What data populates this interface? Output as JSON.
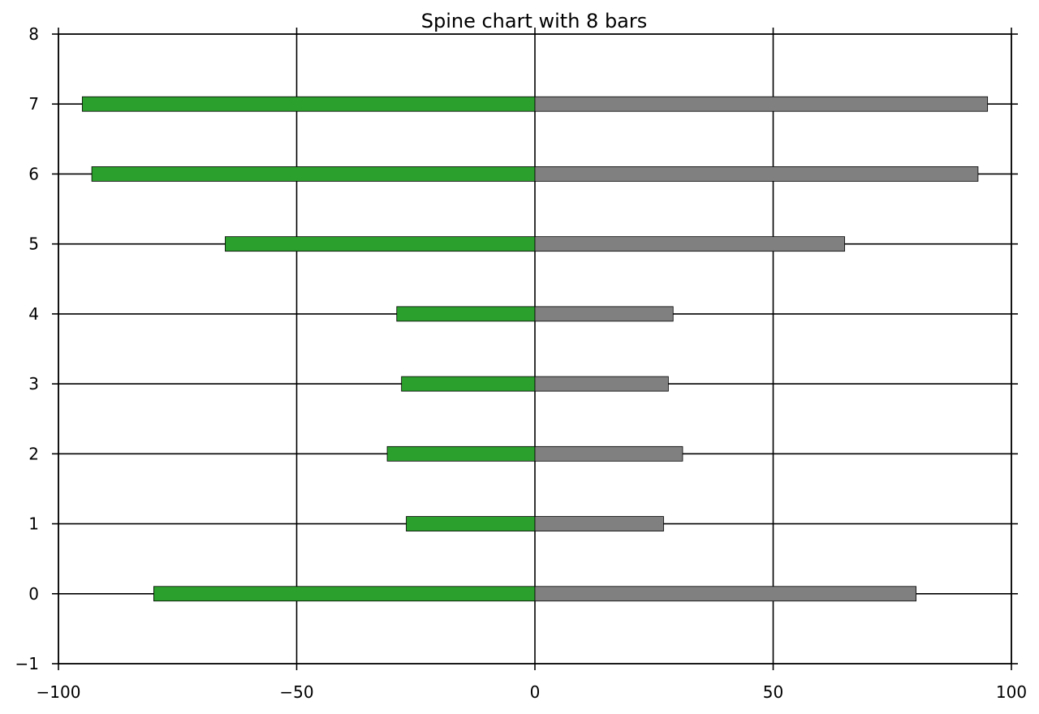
{
  "chart_data": {
    "type": "bar",
    "orientation": "horizontal",
    "stacking": "diverging",
    "title": "Spine chart with 8 bars",
    "xlabel": "",
    "ylabel": "",
    "xlim": [
      -100,
      100
    ],
    "ylim": [
      -1,
      8
    ],
    "x_ticks": [
      -100,
      -50,
      0,
      50,
      100
    ],
    "y_ticks": [
      -1,
      0,
      1,
      2,
      3,
      4,
      5,
      6,
      7,
      8
    ],
    "x_tick_labels": [
      "−100",
      "−50",
      "0",
      "50",
      "100"
    ],
    "y_tick_labels": [
      "−1",
      "0",
      "1",
      "2",
      "3",
      "4",
      "5",
      "6",
      "7",
      "8"
    ],
    "grid": true,
    "legend": "none",
    "categories": [
      0,
      1,
      2,
      3,
      4,
      5,
      6,
      7
    ],
    "series": [
      {
        "side": "left",
        "color": "#2ca02c",
        "values": [
          -80,
          -27,
          -31,
          -28,
          -29,
          -65,
          -93,
          -95
        ]
      },
      {
        "side": "right",
        "color": "#808080",
        "values": [
          80,
          27,
          31,
          28,
          29,
          65,
          93,
          95
        ]
      }
    ]
  }
}
